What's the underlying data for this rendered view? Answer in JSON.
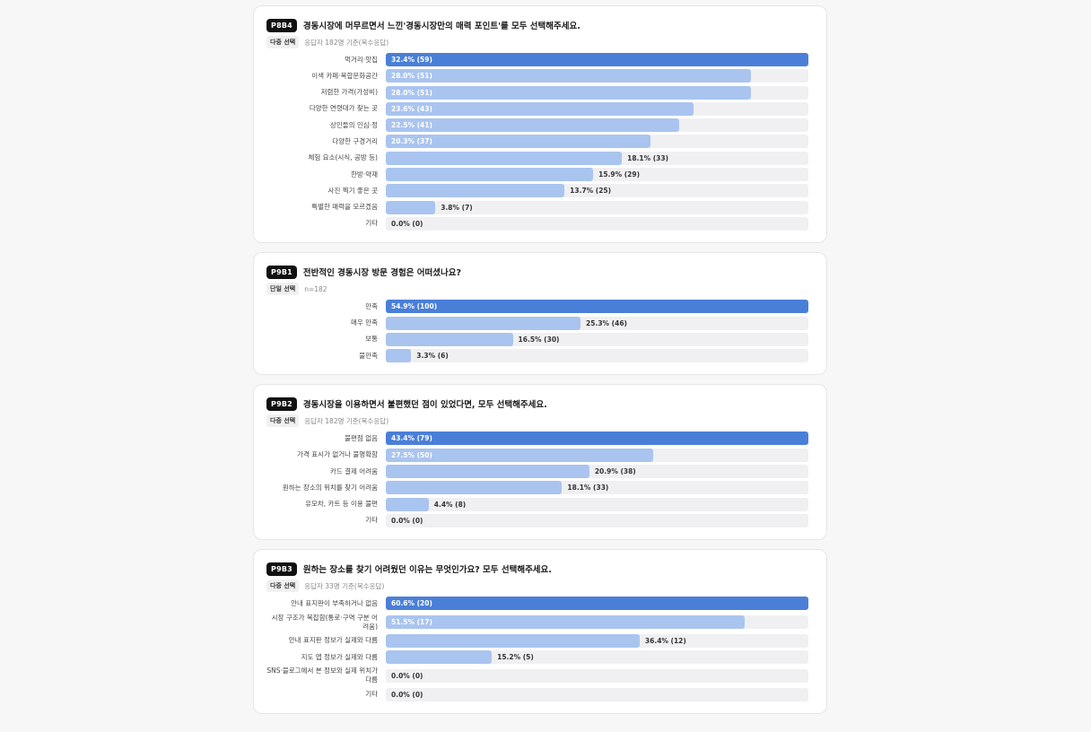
{
  "chart_data": [
    {
      "type": "bar",
      "code": "P8B4",
      "title": "경동시장에 머무르면서 느낀'경동시장만의 매력 포인트'를 모두 선택해주세요.",
      "question_type": "다중 선택",
      "note": "응답자 182명 기준(복수응답)",
      "xlim": [
        0,
        32.4
      ],
      "categories": [
        "먹거리·맛집",
        "이색 카페·복합문화공간",
        "저렴한 가격(가성비)",
        "다양한 연령대가 찾는 곳",
        "상인들의 인심·정",
        "다양한 구경거리",
        "체험 요소(시식, 공방 등)",
        "한방·약재",
        "사진 찍기 좋은 곳",
        "특별한 매력을 모르겠음",
        "기타"
      ],
      "values": [
        32.4,
        28.0,
        28.0,
        23.6,
        22.5,
        20.3,
        18.1,
        15.9,
        13.7,
        3.8,
        0.0
      ],
      "value_labels": [
        "32.4% (59)",
        "28.0% (51)",
        "28.0% (51)",
        "23.6% (43)",
        "22.5% (41)",
        "20.3% (37)",
        "18.1% (33)",
        "15.9% (29)",
        "13.7% (25)",
        "3.8% (7)",
        "0.0% (0)"
      ],
      "label_inside": [
        true,
        true,
        true,
        true,
        true,
        true,
        false,
        false,
        false,
        false,
        true
      ]
    },
    {
      "type": "bar",
      "code": "P9B1",
      "title": "전반적인 경동시장 방문 경험은 어떠셨나요?",
      "question_type": "단일 선택",
      "note": "n=182",
      "xlim": [
        0,
        54.9
      ],
      "categories": [
        "만족",
        "매우 만족",
        "보통",
        "불만족"
      ],
      "values": [
        54.9,
        25.3,
        16.5,
        3.3
      ],
      "value_labels": [
        "54.9% (100)",
        "25.3% (46)",
        "16.5% (30)",
        "3.3% (6)"
      ],
      "label_inside": [
        true,
        false,
        false,
        false
      ]
    },
    {
      "type": "bar",
      "code": "P9B2",
      "title": "경동시장을 이용하면서 불편했던 점이 있었다면, 모두 선택해주세요.",
      "question_type": "다중 선택",
      "note": "응답자 182명 기준(복수응답)",
      "xlim": [
        0,
        43.4
      ],
      "categories": [
        "불편점 없음",
        "가격 표시가 없거나 불명확함",
        "카드 결제 어려움",
        "원하는 장소의 위치를 찾기 어려움",
        "유모차, 카트 등 이용 불편",
        "기타"
      ],
      "values": [
        43.4,
        27.5,
        20.9,
        18.1,
        4.4,
        0.0
      ],
      "value_labels": [
        "43.4% (79)",
        "27.5% (50)",
        "20.9% (38)",
        "18.1% (33)",
        "4.4% (8)",
        "0.0% (0)"
      ],
      "label_inside": [
        true,
        true,
        false,
        false,
        false,
        true
      ]
    },
    {
      "type": "bar",
      "code": "P9B3",
      "title": "원하는 장소를 찾기 어려웠던 이유는 무엇인가요? 모두 선택해주세요.",
      "question_type": "다중 선택",
      "note": "응답자 33명 기준(복수응답)",
      "xlim": [
        0,
        60.6
      ],
      "categories": [
        "안내 표지판이 부족하거나 없음",
        "시장 구조가 복잡함(통로·구역 구분 어려움)",
        "안내 표지판 정보가 실제와 다름",
        "지도 앱 정보가 실제와 다름",
        "SNS·블로그에서 본 정보와 실제 위치가 다름",
        "기타"
      ],
      "values": [
        60.6,
        51.5,
        36.4,
        15.2,
        0.0,
        0.0
      ],
      "value_labels": [
        "60.6% (20)",
        "51.5% (17)",
        "36.4% (12)",
        "15.2% (5)",
        "0.0% (0)",
        "0.0% (0)"
      ],
      "label_inside": [
        true,
        true,
        false,
        false,
        true,
        true
      ]
    }
  ],
  "colors": {
    "top_bar": "#4a7fd8",
    "bar": "#a9c4ef",
    "track": "#f0f0f2"
  }
}
